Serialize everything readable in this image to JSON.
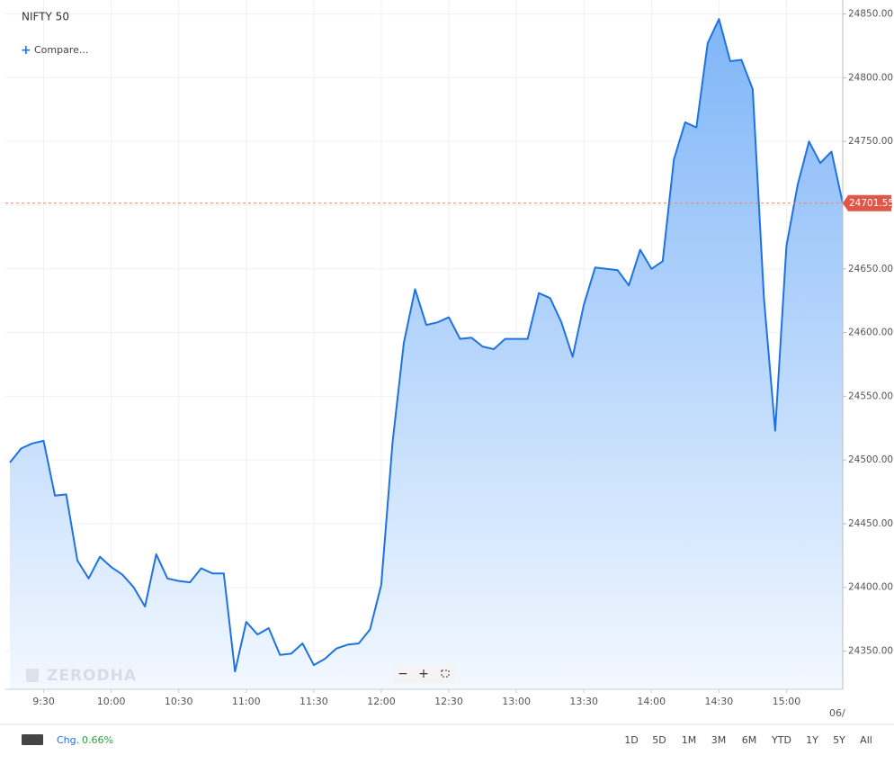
{
  "header": {
    "title": "NIFTY 50",
    "compare": "Compare..."
  },
  "watermark": "ZERODHA",
  "chart_data": {
    "type": "area",
    "x": [
      "9:15",
      "9:20",
      "9:25",
      "9:30",
      "9:35",
      "9:40",
      "9:45",
      "9:50",
      "9:55",
      "10:00",
      "10:05",
      "10:10",
      "10:15",
      "10:20",
      "10:25",
      "10:30",
      "10:35",
      "10:40",
      "10:45",
      "10:50",
      "10:55",
      "11:00",
      "11:05",
      "11:10",
      "11:15",
      "11:20",
      "11:25",
      "11:30",
      "11:35",
      "11:40",
      "11:45",
      "11:50",
      "11:55",
      "12:00",
      "12:05",
      "12:10",
      "12:15",
      "12:20",
      "12:25",
      "12:30",
      "12:35",
      "12:40",
      "12:45",
      "12:50",
      "12:55",
      "13:00",
      "13:05",
      "13:10",
      "13:15",
      "13:20",
      "13:25",
      "13:30",
      "13:35",
      "13:40",
      "13:45",
      "13:50",
      "13:55",
      "14:00",
      "14:05",
      "14:10",
      "14:15",
      "14:20",
      "14:25",
      "14:30",
      "14:35",
      "14:40",
      "14:45",
      "14:50",
      "14:55",
      "15:00",
      "15:05",
      "15:10",
      "15:15",
      "15:20",
      "15:25"
    ],
    "series": [
      {
        "name": "NIFTY 50",
        "color": "#1e73e0",
        "values": [
          24498,
          24509,
          24513,
          24515,
          24472,
          24473,
          24421,
          24407,
          24424,
          24416,
          24410,
          24400,
          24385,
          24426,
          24407,
          24405,
          24404,
          24415,
          24411,
          24411,
          24334,
          24373,
          24363,
          24368,
          24347,
          24348,
          24356,
          24339,
          24344,
          24352,
          24355,
          24356,
          24367,
          24402,
          24514,
          24592,
          24634,
          24606,
          24608,
          24612,
          24595,
          24596,
          24589,
          24587,
          24595,
          24595,
          24595,
          24631,
          24627,
          24608,
          24581,
          24622,
          24651,
          24650,
          24649,
          24637,
          24665,
          24650,
          24656,
          24736,
          24765,
          24761,
          24827,
          24846,
          24813,
          24814,
          24791,
          24627,
          24523,
          24668,
          24716,
          24750,
          24733,
          24742,
          24701.55
        ]
      }
    ],
    "xlim": [
      "9:13",
      "15:25"
    ],
    "xticks": [
      "9:30",
      "10:00",
      "10:30",
      "11:00",
      "11:30",
      "12:00",
      "12:30",
      "13:00",
      "13:30",
      "14:00",
      "14:30",
      "15:00"
    ],
    "date_label": "06/",
    "ylim": [
      24320,
      24861
    ],
    "yticks": [
      {
        "value": 24350,
        "label": "24350.00"
      },
      {
        "value": 24400,
        "label": "24400.00"
      },
      {
        "value": 24450,
        "label": "24450.00"
      },
      {
        "value": 24500,
        "label": "24500.00"
      },
      {
        "value": 24550,
        "label": "24550.00"
      },
      {
        "value": 24600,
        "label": "24600.00"
      },
      {
        "value": 24650,
        "label": "24650.00"
      },
      {
        "value": 24700,
        "label": "24700.00"
      },
      {
        "value": 24750,
        "label": "24750.00"
      },
      {
        "value": 24800,
        "label": "24800.00"
      },
      {
        "value": 24850,
        "label": "24850.00"
      }
    ],
    "grid": true
  },
  "footer": {
    "change_label": "Chg.",
    "change_value": "0.66%",
    "ranges": [
      "1D",
      "5D",
      "1M",
      "3M",
      "6M",
      "YTD",
      "1Y",
      "5Y",
      "All"
    ]
  }
}
